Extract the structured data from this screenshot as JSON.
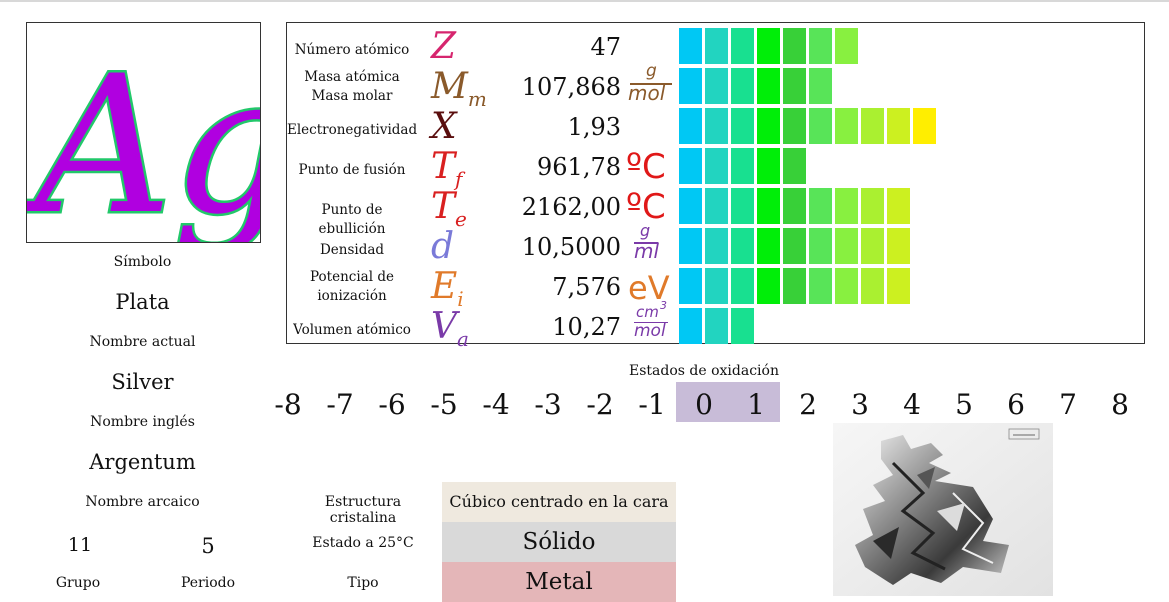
{
  "element": {
    "symbol": "Ag",
    "current_name": "Plata",
    "current_name_label": "Símbolo",
    "name_label": "Nombre actual",
    "english_name": "Silver",
    "english_label": "Nombre inglés",
    "archaic_name": "Argentum",
    "archaic_label": "Nombre arcaico",
    "group": "11",
    "period": "5",
    "group_label": "Grupo",
    "period_label": "Periodo"
  },
  "properties": [
    {
      "name": "Número atómico",
      "symbol": "Z",
      "sub": "",
      "value": "47",
      "unit": "",
      "bars": 7,
      "symbol_color": "#d6256e"
    },
    {
      "name": "Masa atómica\nMasa molar",
      "symbol": "M",
      "sub": "m",
      "value": "107,868",
      "unit": "g/mol",
      "bars": 6,
      "symbol_color": "#8a5a2b"
    },
    {
      "name": "Electronegatividad",
      "symbol": "X",
      "sub": "",
      "value": "1,93",
      "unit": "",
      "bars": 10,
      "symbol_color": "#5a0e0e"
    },
    {
      "name": "Punto de fusión",
      "symbol": "T",
      "sub": "f",
      "value": "961,78",
      "unit": "ºC",
      "bars": 5,
      "symbol_color": "#d92020"
    },
    {
      "name": "Punto de ebullición",
      "symbol": "T",
      "sub": "e",
      "value": "2162,00",
      "unit": "ºC",
      "bars": 9,
      "symbol_color": "#d92020"
    },
    {
      "name": "Densidad",
      "symbol": "d",
      "sub": "",
      "value": "10,5000",
      "unit": "g/ml",
      "bars": 9,
      "symbol_color": "#7a7ad8"
    },
    {
      "name": "Potencial de\nionización",
      "symbol": "E",
      "sub": "i",
      "value": "7,576",
      "unit": "eV",
      "bars": 9,
      "symbol_color": "#e07a2a"
    },
    {
      "name": "Volumen atómico",
      "symbol": "V",
      "sub": "a",
      "value": "10,27",
      "unit": "cm3/mol",
      "bars": 3,
      "symbol_color": "#7a3aa8"
    }
  ],
  "bar_colors": [
    "#00c8f4",
    "#22d4c0",
    "#18e090",
    "#00ee08",
    "#38d038",
    "#58e458",
    "#88f040",
    "#aaf030",
    "#ccf020",
    "#ffee00"
  ],
  "oxidation": {
    "title": "Estados de oxidación",
    "states": [
      "-8",
      "-7",
      "-6",
      "-5",
      "-4",
      "-3",
      "-2",
      "-1",
      "0",
      "1",
      "2",
      "3",
      "4",
      "5",
      "6",
      "7",
      "8"
    ],
    "highlighted": [
      "0",
      "1"
    ]
  },
  "structure": {
    "crystal_label": "Estructura cristalina",
    "crystal_value": "Cúbico centrado en la cara",
    "state_label": "Estado a 25°C",
    "state_value": "Sólido",
    "type_label": "Tipo",
    "type_value": "Metal"
  },
  "units": {
    "g": "g",
    "mol": "mol",
    "ml": "ml",
    "degC": "ºC",
    "eV": "eV",
    "cm3": "cm",
    "cube": "3"
  }
}
